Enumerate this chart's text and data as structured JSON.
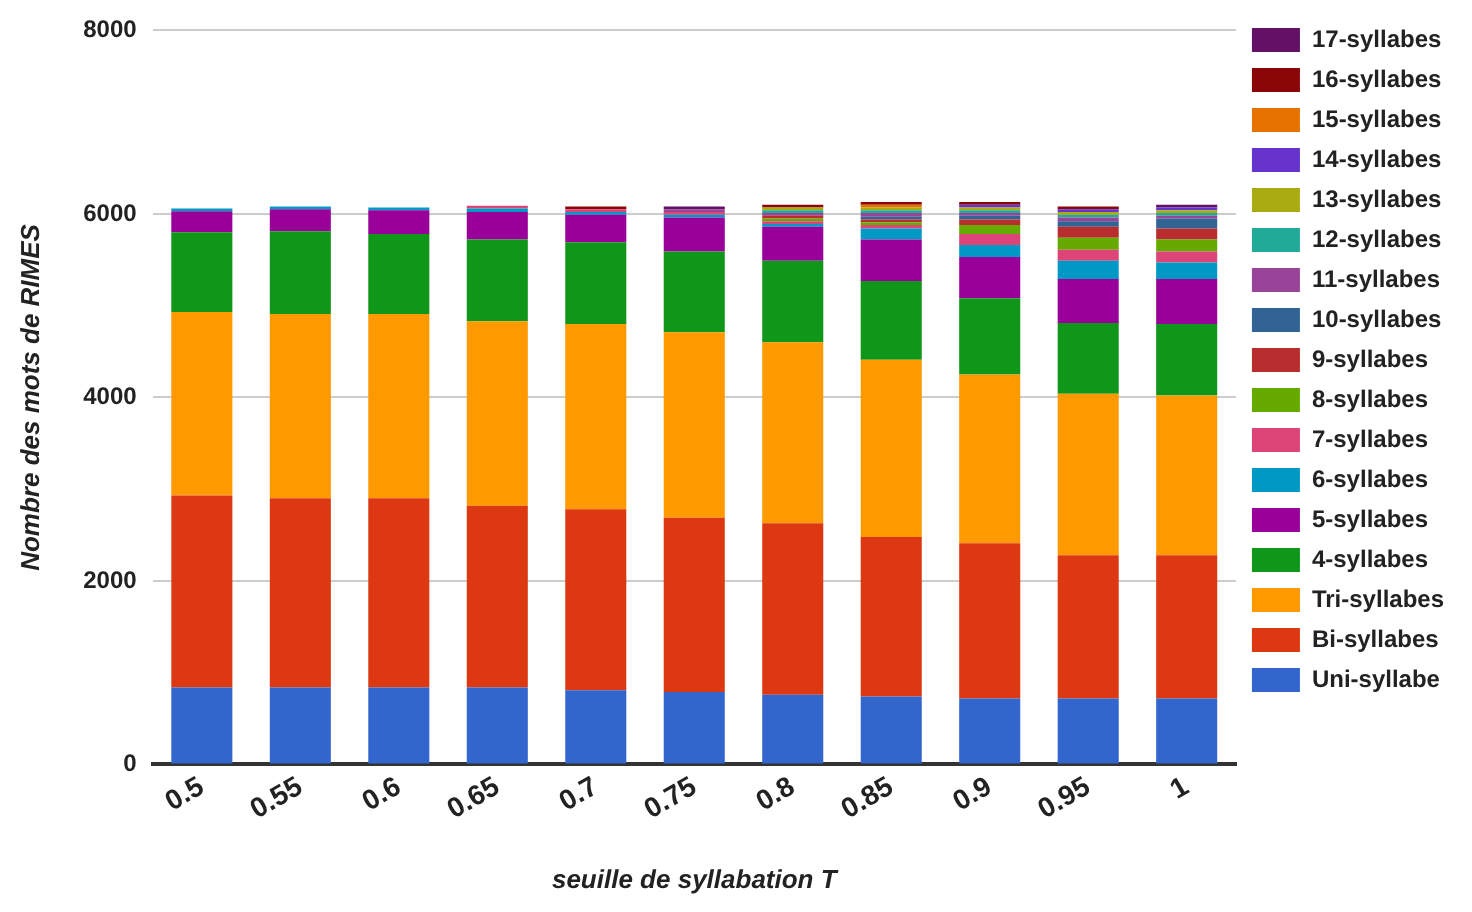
{
  "chart_data": {
    "type": "bar",
    "stacked": true,
    "xlabel": "seuille de syllabation T",
    "ylabel": "Nombre des mots de RIMES",
    "categories": [
      "0.5",
      "0.55",
      "0.6",
      "0.65",
      "0.7",
      "0.75",
      "0.8",
      "0.85",
      "0.9",
      "0.95",
      "1"
    ],
    "ylim": [
      0,
      8000
    ],
    "yticks": [
      0,
      2000,
      4000,
      6000,
      8000
    ],
    "grid": "y",
    "legend": "right",
    "series": [
      {
        "name": "Uni-syllabe",
        "color": "#3366cc",
        "values": [
          840,
          840,
          840,
          840,
          810,
          790,
          760,
          740,
          720,
          720,
          720
        ]
      },
      {
        "name": "Bi-syllabes",
        "color": "#dc3912",
        "values": [
          2090,
          2060,
          2060,
          1980,
          1970,
          1900,
          1870,
          1740,
          1690,
          1560,
          1560
        ]
      },
      {
        "name": "Tri-syllabes",
        "color": "#ff9900",
        "values": [
          2000,
          2010,
          2010,
          2010,
          2020,
          2020,
          1970,
          1930,
          1840,
          1760,
          1740
        ]
      },
      {
        "name": "4-syllabes",
        "color": "#109618",
        "values": [
          870,
          900,
          870,
          890,
          890,
          880,
          890,
          860,
          830,
          770,
          780
        ]
      },
      {
        "name": "5-syllabes",
        "color": "#990099",
        "values": [
          230,
          240,
          260,
          300,
          300,
          370,
          370,
          450,
          450,
          480,
          490
        ]
      },
      {
        "name": "6-syllabes",
        "color": "#0099c6",
        "values": [
          30,
          30,
          30,
          40,
          30,
          30,
          30,
          120,
          130,
          200,
          180
        ]
      },
      {
        "name": "7-syllabes",
        "color": "#dd4477",
        "values": [
          0,
          0,
          0,
          30,
          30,
          30,
          30,
          40,
          120,
          120,
          120
        ]
      },
      {
        "name": "8-syllabes",
        "color": "#66aa00",
        "values": [
          0,
          0,
          0,
          0,
          0,
          0,
          30,
          30,
          100,
          130,
          130
        ]
      },
      {
        "name": "9-syllabes",
        "color": "#b82e2e",
        "values": [
          0,
          0,
          0,
          0,
          0,
          0,
          30,
          30,
          60,
          120,
          120
        ]
      },
      {
        "name": "10-syllabes",
        "color": "#316395",
        "values": [
          0,
          0,
          0,
          0,
          0,
          0,
          0,
          30,
          40,
          60,
          110
        ]
      },
      {
        "name": "11-syllabes",
        "color": "#994499",
        "values": [
          0,
          0,
          0,
          0,
          0,
          30,
          30,
          40,
          30,
          40,
          30
        ]
      },
      {
        "name": "12-syllabes",
        "color": "#22aa99",
        "values": [
          0,
          0,
          0,
          0,
          0,
          0,
          30,
          30,
          30,
          30,
          30
        ]
      },
      {
        "name": "13-syllabes",
        "color": "#aaaa11",
        "values": [
          0,
          0,
          0,
          0,
          0,
          0,
          30,
          30,
          30,
          30,
          30
        ]
      },
      {
        "name": "14-syllabes",
        "color": "#6633cc",
        "values": [
          0,
          0,
          0,
          0,
          0,
          0,
          0,
          0,
          30,
          30,
          30
        ]
      },
      {
        "name": "15-syllabes",
        "color": "#e67300",
        "values": [
          0,
          0,
          0,
          0,
          0,
          0,
          0,
          30,
          0,
          0,
          0
        ]
      },
      {
        "name": "16-syllabes",
        "color": "#8b0707",
        "values": [
          0,
          0,
          0,
          0,
          30,
          0,
          30,
          30,
          30,
          30,
          0
        ]
      },
      {
        "name": "17-syllabes",
        "color": "#651067",
        "values": [
          0,
          0,
          0,
          0,
          0,
          30,
          0,
          0,
          0,
          0,
          30
        ]
      }
    ]
  }
}
